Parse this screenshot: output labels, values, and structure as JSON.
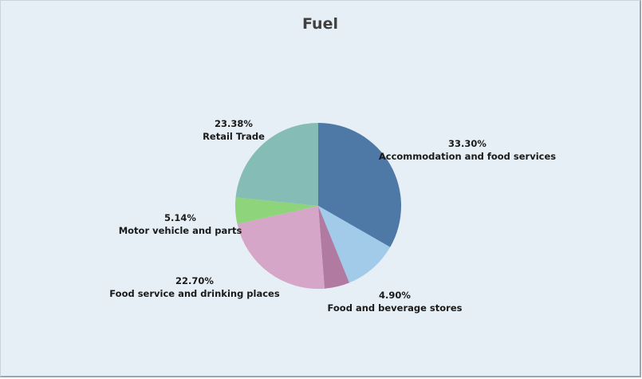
{
  "chart_data": {
    "type": "pie",
    "title": "Fuel",
    "slices": [
      {
        "label": "Accommodation and food services",
        "value": 33.3,
        "percent_label": "33.30%",
        "color": "#4e78a6"
      },
      {
        "label": "",
        "value": 10.58,
        "percent_label": "",
        "color": "#a1cbe9"
      },
      {
        "label": "Food and beverage stores",
        "value": 4.9,
        "percent_label": "4.90%",
        "color": "#b07aa1"
      },
      {
        "label": "Food service and drinking places",
        "value": 22.7,
        "percent_label": "22.70%",
        "color": "#d5a6c8"
      },
      {
        "label": "Motor vehicle and parts",
        "value": 5.14,
        "percent_label": "5.14%",
        "color": "#8dd47a"
      },
      {
        "label": "Retail Trade",
        "value": 23.38,
        "percent_label": "23.38%",
        "color": "#86bcb6"
      }
    ],
    "background": "#e6eff5"
  }
}
